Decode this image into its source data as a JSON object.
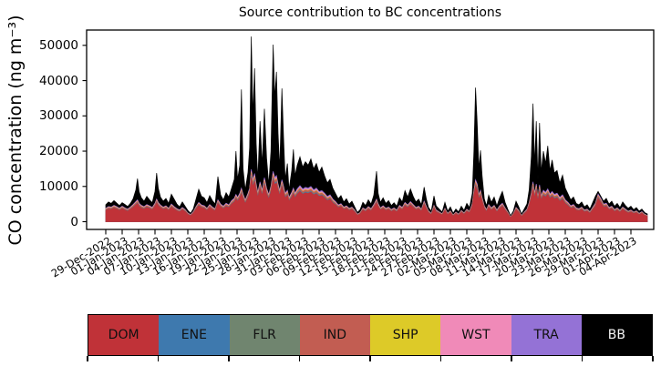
{
  "title": "Source contribution to BC concentrations",
  "ylabel": "CO concentration (ng m⁻³)",
  "legend": {
    "items": [
      {
        "label": "DOM",
        "color": "#c03238",
        "text_color": "#111111"
      },
      {
        "label": "ENE",
        "color": "#3e79ae",
        "text_color": "#111111"
      },
      {
        "label": "FLR",
        "color": "#70856f",
        "text_color": "#111111"
      },
      {
        "label": "IND",
        "color": "#c25d52",
        "text_color": "#111111"
      },
      {
        "label": "SHP",
        "color": "#ddca28",
        "text_color": "#111111"
      },
      {
        "label": "WST",
        "color": "#f08ab8",
        "text_color": "#111111"
      },
      {
        "label": "TRA",
        "color": "#9472d6",
        "text_color": "#111111"
      },
      {
        "label": "BB",
        "color": "#000000",
        "text_color": "#f5f5f5"
      }
    ]
  },
  "chart_data": {
    "type": "area",
    "stacked": true,
    "title": "Source contribution to BC concentrations",
    "ylabel": "CO concentration (ng m⁻³)",
    "ylim": [
      -2600,
      55100
    ],
    "yticks": [
      0,
      10000,
      20000,
      30000,
      40000,
      50000
    ],
    "ytick_labels": [
      "0",
      "10000",
      "20000",
      "30000",
      "40000",
      "50000"
    ],
    "xtick_interval_days": 3,
    "xtick_labels": [
      "29-Dec-2022",
      "01-Jan-2023",
      "04-Jan-2023",
      "07-Jan-2023",
      "10-Jan-2023",
      "13-Jan-2023",
      "16-Jan-2023",
      "19-Jan-2023",
      "22-Jan-2023",
      "25-Jan-2023",
      "28-Jan-2023",
      "31-Jan-2023",
      "03-Feb-2023",
      "06-Feb-2023",
      "09-Feb-2023",
      "12-Feb-2023",
      "15-Feb-2023",
      "18-Feb-2023",
      "21-Feb-2023",
      "24-Feb-2023",
      "27-Feb-2023",
      "02-Mar-2023",
      "05-Mar-2023",
      "08-Mar-2023",
      "11-Mar-2023",
      "14-Mar-2023",
      "17-Mar-2023",
      "20-Mar-2023",
      "23-Mar-2023",
      "26-Mar-2023",
      "29-Mar-2023",
      "01-Apr-2023",
      "04-Apr-2023"
    ],
    "series_order": [
      "DOM",
      "ENE",
      "FLR",
      "IND",
      "SHP",
      "WST",
      "TRA",
      "BB"
    ],
    "colors": {
      "DOM": "#c03238",
      "ENE": "#3e79ae",
      "FLR": "#70856f",
      "IND": "#c25d52",
      "SHP": "#ddca28",
      "WST": "#f08ab8",
      "TRA": "#9472d6",
      "BB": "#000000"
    },
    "thin_layer_fractions_of_DOM": {
      "ENE": 0.02,
      "FLR": 0.015,
      "IND": 0.06,
      "SHP": 0.015,
      "WST": 0.035,
      "TRA": 0.045
    },
    "points": {
      "day": [
        0,
        0.5,
        1,
        1.5,
        2,
        2.5,
        3,
        3.5,
        4,
        4.5,
        5,
        5.5,
        5.8,
        6.1,
        6.5,
        7,
        7.5,
        8,
        8.5,
        9,
        9.3,
        9.6,
        10,
        10.5,
        11,
        11.5,
        12,
        12.5,
        13,
        13.5,
        14,
        14.5,
        15,
        15.5,
        16,
        16.5,
        17,
        17.5,
        18,
        18.5,
        19,
        19.5,
        20,
        20.5,
        21,
        21.5,
        22,
        22.5,
        23,
        23.5,
        23.8,
        24.1,
        24.5,
        24.8,
        25.1,
        25.5,
        26,
        26.3,
        26.6,
        26.9,
        27.2,
        27.5,
        27.8,
        28.2,
        28.6,
        29,
        29.4,
        29.8,
        30.2,
        30.6,
        30.9,
        31.2,
        31.5,
        31.8,
        32.2,
        32.5,
        32.8,
        33.2,
        33.5,
        34,
        34.3,
        34.6,
        35,
        35.5,
        36,
        36.5,
        37,
        37.5,
        38,
        38.5,
        39,
        39.5,
        40,
        40.5,
        41,
        41.5,
        42,
        42.5,
        43,
        43.5,
        44,
        44.5,
        45,
        45.5,
        46,
        46.5,
        47,
        47.5,
        48,
        48.5,
        49,
        49.5,
        49.8,
        50.2,
        50.7,
        51.2,
        51.7,
        52.2,
        52.7,
        53.2,
        53.7,
        54.2,
        54.7,
        55.2,
        55.7,
        56.2,
        56.7,
        57.2,
        57.7,
        58.2,
        58.6,
        59,
        59.5,
        60,
        60.4,
        61,
        61.5,
        62,
        62.5,
        63,
        63.5,
        64,
        64.5,
        65,
        65.5,
        66,
        66.5,
        67,
        67.3,
        67.6,
        67.9,
        68.2,
        68.5,
        68.8,
        69.2,
        69.6,
        70,
        70.5,
        71,
        71.5,
        72,
        72.5,
        73,
        73.5,
        74,
        74.5,
        75,
        75.5,
        76,
        76.5,
        77,
        77.4,
        77.8,
        78.1,
        78.4,
        78.7,
        79,
        79.3,
        79.6,
        80,
        80.4,
        80.8,
        81.2,
        81.6,
        82,
        82.5,
        83,
        83.5,
        84,
        84.5,
        85,
        85.5,
        86,
        86.5,
        87,
        87.5,
        88,
        88.5,
        89,
        89.5,
        90,
        90.5,
        91,
        91.5,
        92,
        92.5,
        93,
        93.5,
        94,
        94.5,
        95,
        95.5,
        96,
        96.5,
        97,
        97.5,
        98,
        98.5,
        99
      ],
      "total": [
        4800,
        5600,
        5200,
        6000,
        5300,
        4600,
        5400,
        4900,
        4300,
        5200,
        6500,
        9000,
        12200,
        8500,
        6800,
        5800,
        7200,
        6200,
        5400,
        8600,
        13800,
        9500,
        7000,
        5800,
        6600,
        5200,
        7800,
        6400,
        5000,
        4200,
        5600,
        4400,
        3200,
        2400,
        3600,
        6400,
        9200,
        7200,
        6800,
        5400,
        7400,
        6000,
        5000,
        12800,
        7600,
        6200,
        8200,
        7000,
        9500,
        12000,
        20000,
        12000,
        16000,
        37500,
        15000,
        9000,
        14000,
        21000,
        52500,
        30000,
        43500,
        22000,
        12000,
        28500,
        16000,
        32000,
        18000,
        10500,
        20000,
        50200,
        35000,
        42500,
        25000,
        15000,
        37800,
        24000,
        12000,
        16500,
        9000,
        14500,
        20500,
        13000,
        16000,
        18400,
        15500,
        17000,
        16000,
        17800,
        15000,
        16500,
        14000,
        15500,
        13000,
        11000,
        12000,
        9500,
        8000,
        6500,
        7400,
        5600,
        6500,
        5000,
        5800,
        4200,
        2600,
        3400,
        5500,
        4600,
        6200,
        5000,
        7500,
        14300,
        8000,
        5500,
        6800,
        5200,
        6000,
        4600,
        5400,
        4400,
        6800,
        5600,
        8800,
        7000,
        9300,
        7200,
        5600,
        6400,
        4800,
        9800,
        6500,
        4000,
        3000,
        7300,
        4500,
        3500,
        2800,
        5500,
        3000,
        4200,
        2400,
        3600,
        2800,
        4400,
        3200,
        5200,
        4000,
        8000,
        20000,
        38000,
        28000,
        15000,
        20200,
        13000,
        6500,
        4500,
        7500,
        5500,
        7000,
        4500,
        6800,
        8600,
        5500,
        3500,
        1700,
        3000,
        5800,
        4200,
        2200,
        3600,
        5000,
        9000,
        18500,
        33500,
        16000,
        28500,
        12000,
        28000,
        14000,
        20000,
        16500,
        21500,
        14500,
        17500,
        13800,
        14500,
        11000,
        13200,
        9500,
        7900,
        6200,
        7000,
        5200,
        4800,
        5600,
        4200,
        4800,
        3600,
        5400,
        7200,
        8600,
        7200,
        5800,
        6600,
        5000,
        5800,
        4400,
        5200,
        4000,
        5600,
        4600,
        3800,
        4400,
        3400,
        4000,
        3000,
        3600,
        2600,
        2200
      ],
      "dom": [
        3200,
        3600,
        3500,
        3900,
        3600,
        3200,
        3700,
        3300,
        3000,
        3500,
        4100,
        4800,
        5200,
        4400,
        3900,
        3600,
        4100,
        3800,
        3400,
        4400,
        5400,
        4600,
        4000,
        3500,
        3800,
        3200,
        4200,
        3600,
        3100,
        2800,
        3400,
        2900,
        2100,
        1700,
        2400,
        3600,
        4600,
        4000,
        3800,
        3200,
        4100,
        3500,
        3100,
        5200,
        4200,
        3700,
        4400,
        4000,
        5000,
        5600,
        6500,
        5800,
        6800,
        8000,
        6600,
        5200,
        6800,
        8000,
        12500,
        10000,
        11500,
        9000,
        7000,
        9500,
        7500,
        10500,
        8000,
        6500,
        8500,
        12000,
        10500,
        11000,
        9000,
        7500,
        10000,
        8500,
        6800,
        7500,
        5800,
        7000,
        8000,
        6800,
        7800,
        8600,
        7800,
        8200,
        8000,
        8400,
        7600,
        8000,
        7200,
        7400,
        6800,
        6000,
        6400,
        5400,
        4800,
        4000,
        4300,
        3500,
        3800,
        3200,
        3500,
        2800,
        1800,
        2200,
        3300,
        2900,
        3600,
        3100,
        4100,
        5400,
        4300,
        3300,
        3800,
        3200,
        3500,
        2900,
        3300,
        2800,
        3900,
        3400,
        4600,
        4000,
        4800,
        4100,
        3400,
        3700,
        3000,
        4900,
        3700,
        2600,
        2000,
        3900,
        2800,
        2300,
        1900,
        3200,
        2000,
        2600,
        1600,
        2300,
        1800,
        2700,
        2100,
        3000,
        2500,
        4400,
        7500,
        10000,
        9000,
        6500,
        7500,
        5800,
        3800,
        2900,
        4100,
        3300,
        3900,
        2800,
        3800,
        4400,
        3300,
        2300,
        1200,
        2000,
        3400,
        2700,
        1500,
        2300,
        3000,
        4600,
        7000,
        9500,
        6800,
        9000,
        5800,
        8800,
        6200,
        7500,
        7000,
        7800,
        6600,
        7200,
        6500,
        6800,
        5800,
        6400,
        5200,
        4600,
        3800,
        4100,
        3300,
        3100,
        3500,
        2800,
        3000,
        2400,
        3400,
        4400,
        6600,
        5500,
        4200,
        4400,
        3400,
        3700,
        2900,
        3300,
        2700,
        3500,
        3000,
        2500,
        2800,
        2300,
        2600,
        2000,
        2400,
        1800,
        1500
      ]
    }
  }
}
